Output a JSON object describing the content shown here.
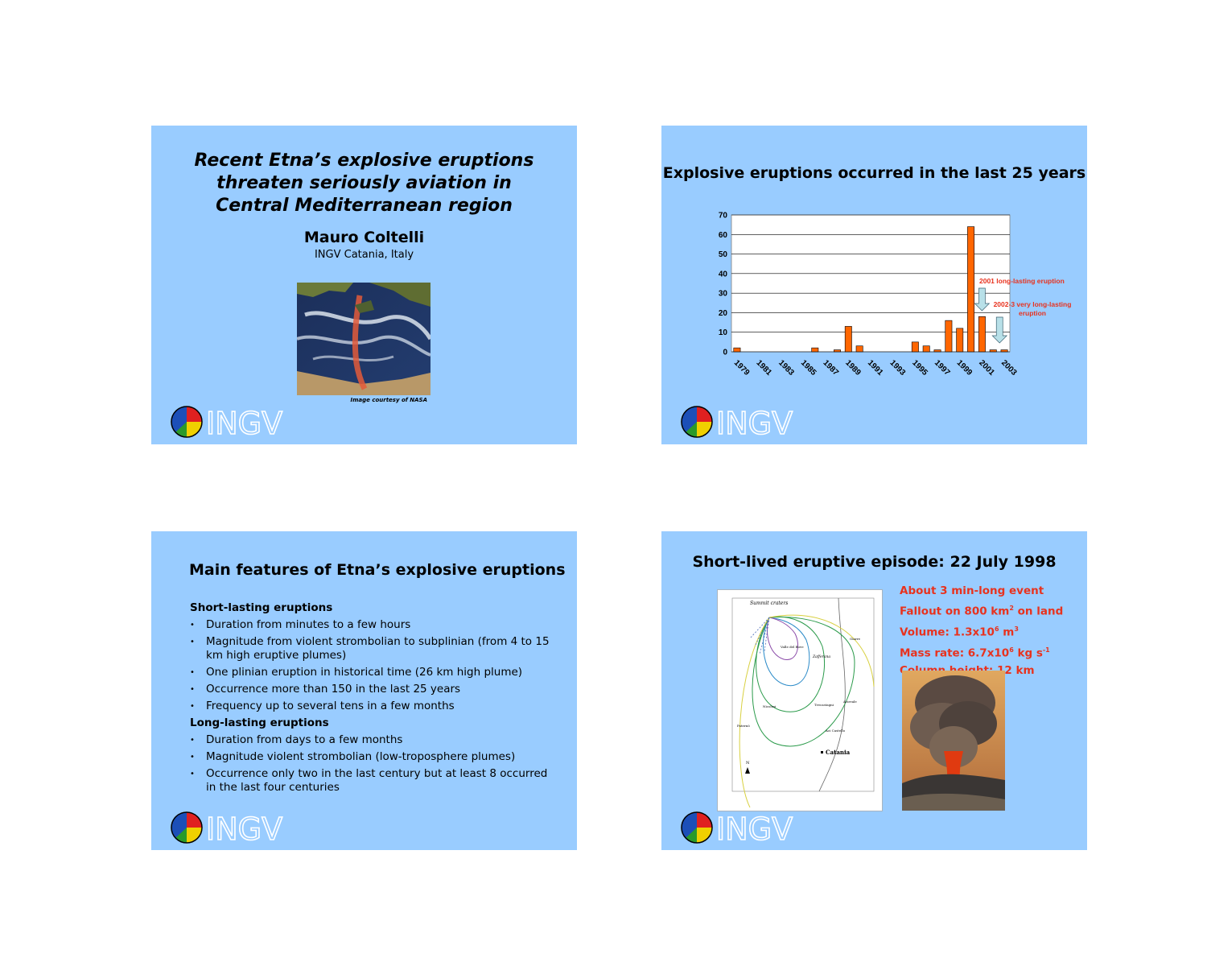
{
  "slides": {
    "s1": {
      "title_lines": [
        "Recent Etna’s explosive eruptions",
        "threaten seriously aviation in",
        "Central Mediterranean region"
      ],
      "author": "Mauro Coltelli",
      "affiliation": "INGV Catania, Italy",
      "image_credit": "Image courtesy of NASA",
      "logo_text": "INGV"
    },
    "s2": {
      "title": "Explosive eruptions occurred in the last 25 years",
      "logo_text": "INGV"
    },
    "s3": {
      "title": "Main features of Etna’s explosive eruptions",
      "short_header": "Short-lasting eruptions",
      "short_items": [
        "Duration from minutes to a few hours",
        "Magnitude from violent strombolian to subplinian (from 4 to 15 km high eruptive plumes)",
        "One plinian eruption in historical time (26 km high plume)",
        "Occurrence more than 150 in the last 25 years",
        "Frequency up to several tens in a few months"
      ],
      "long_header": "Long-lasting eruptions",
      "long_items": [
        "Duration from days to a few months",
        "Magnitude violent strombolian (low-troposphere plumes)",
        "Occurrence only two in the last century but at least 8 occurred in the last four centuries"
      ],
      "logo_text": "INGV"
    },
    "s4": {
      "title": "Short-lived eruptive episode: 22 July 1998",
      "facts": {
        "f1": "About 3 min-long event",
        "f2a": "Fallout on 800 km",
        "f2sup": "2",
        "f2b": " on land",
        "f3a": "Volume: 1.3x10",
        "f3sup": "6",
        "f3b": " m",
        "f3sup2": "3",
        "f4a": "Mass rate: 6.7x10",
        "f4sup": "6",
        "f4b": " kg s",
        "f4sup2": "-1",
        "f5": "Column height: 12 km"
      },
      "map_labels": {
        "summit": "Summit craters",
        "catania": "Catania",
        "zafferana": "Zafferana",
        "nicolosi": "Nicolosi",
        "valle": "Valle del Bove",
        "acicastello": "Aci Castello",
        "trecastagni": "Trecastagni",
        "acireale": "Acireale",
        "giarre": "Giarre",
        "paterno": "Paternò",
        "north": "N"
      },
      "logo_text": "INGV"
    }
  },
  "colors": {
    "slide_bg": "#99ccff",
    "bar": "#ff6600",
    "accent_red": "#e8321e",
    "annotation": "#e8321e",
    "arrow": "#b8e0e8"
  },
  "chart_data": {
    "type": "bar",
    "title": "Explosive eruptions occurred in the last 25 years",
    "categories": [
      "1979",
      "1980",
      "1981",
      "1982",
      "1983",
      "1984",
      "1985",
      "1986",
      "1987",
      "1988",
      "1989",
      "1990",
      "1991",
      "1992",
      "1993",
      "1994",
      "1995",
      "1996",
      "1997",
      "1998",
      "1999",
      "2000",
      "2001",
      "2002",
      "2003"
    ],
    "tick_labels": [
      "1979",
      "1981",
      "1983",
      "1985",
      "1987",
      "1989",
      "1991",
      "1993",
      "1995",
      "1997",
      "1999",
      "2001",
      "2003"
    ],
    "values": [
      2,
      0,
      0,
      0,
      0,
      0,
      0,
      2,
      0,
      1,
      13,
      3,
      0,
      0,
      0,
      0,
      5,
      3,
      1,
      16,
      12,
      64,
      18,
      1,
      1
    ],
    "ylim": [
      0,
      70
    ],
    "yticks": [
      0,
      10,
      20,
      30,
      40,
      50,
      60,
      70
    ],
    "grid": true,
    "annotations": [
      {
        "text": "2001 long-lasting eruption",
        "category": "2001"
      },
      {
        "text_lines": [
          "2002-3 very long-lasting",
          "eruption"
        ],
        "category": "2002"
      }
    ]
  }
}
